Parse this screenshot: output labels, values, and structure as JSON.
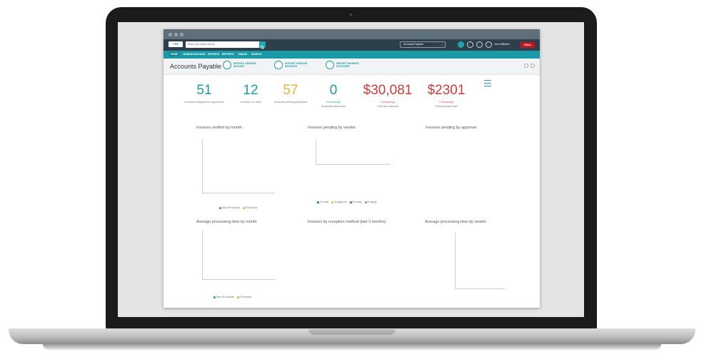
{
  "header": {
    "logo_text": "TRE",
    "search_placeholder": "Enter your search terms",
    "module_selected": "Accounts Payable",
    "user_name": "John Wiltshire",
    "brand_text": "Elms"
  },
  "nav": {
    "items": [
      "HOME",
      "VENDOR INVOICES",
      "EXPORTS",
      "REPORTS",
      "TABLES",
      "SEARCH"
    ]
  },
  "subbar": {
    "title": "Accounts Payable",
    "actions": [
      {
        "label": "ENTER A VENDOR INVOICE",
        "icon": "invoice-icon"
      },
      {
        "label": "EXPORT VENDOR INVOICES",
        "icon": "export-icon"
      },
      {
        "label": "IMPORT PAYMENT STATUSES",
        "icon": "import-icon"
      }
    ]
  },
  "kpis": [
    {
      "value": "51",
      "label": "Invoices assigned to approvers",
      "color": "#1a9aa7"
    },
    {
      "value": "12",
      "label": "Invoices on hold",
      "color": "#1a9aa7"
    },
    {
      "value": "57",
      "label": "Invoices pending payment",
      "color": "#e8b23a"
    },
    {
      "value": "0",
      "sub": "0 invoice(s)",
      "label": "Available discounts",
      "color": "#1a9aa7"
    },
    {
      "value": "$30,081",
      "sub": "7 invoice(s)",
      "label": "Overdue amount",
      "color": "#d13a3a"
    },
    {
      "value": "$2301",
      "sub": "7 invoice(s)",
      "label": "Potential late fees",
      "color": "#d13a3a"
    }
  ],
  "charts": {
    "verified_by_month": {
      "title": "Invoices verified by month",
      "legend": [
        "Non-PO invoice",
        "PO invoice"
      ],
      "legend_colors": [
        "#1a9aa7",
        "#e8b23a"
      ]
    },
    "pending_by_vendor": {
      "title": "Invoices pending by vendor",
      "legend": [
        "On hold",
        "To approve",
        "To verify",
        "To apply"
      ],
      "legend_colors": [
        "#1a7a85",
        "#e8b23a",
        "#d13a3a",
        "#8a8a8a"
      ]
    },
    "pending_by_approver": {
      "title": "Invoices pending by approver"
    },
    "avg_processing_by_month": {
      "title": "Average processing time by month",
      "legend": [
        "Non-PO invoice",
        "PO invoice"
      ],
      "legend_colors": [
        "#1a9aa7",
        "#e8b23a"
      ]
    },
    "by_reception_method": {
      "title": "Invoices by reception method (last 3 months)"
    },
    "avg_processing_by_vendor": {
      "title": "Average processing time by vendor"
    }
  }
}
